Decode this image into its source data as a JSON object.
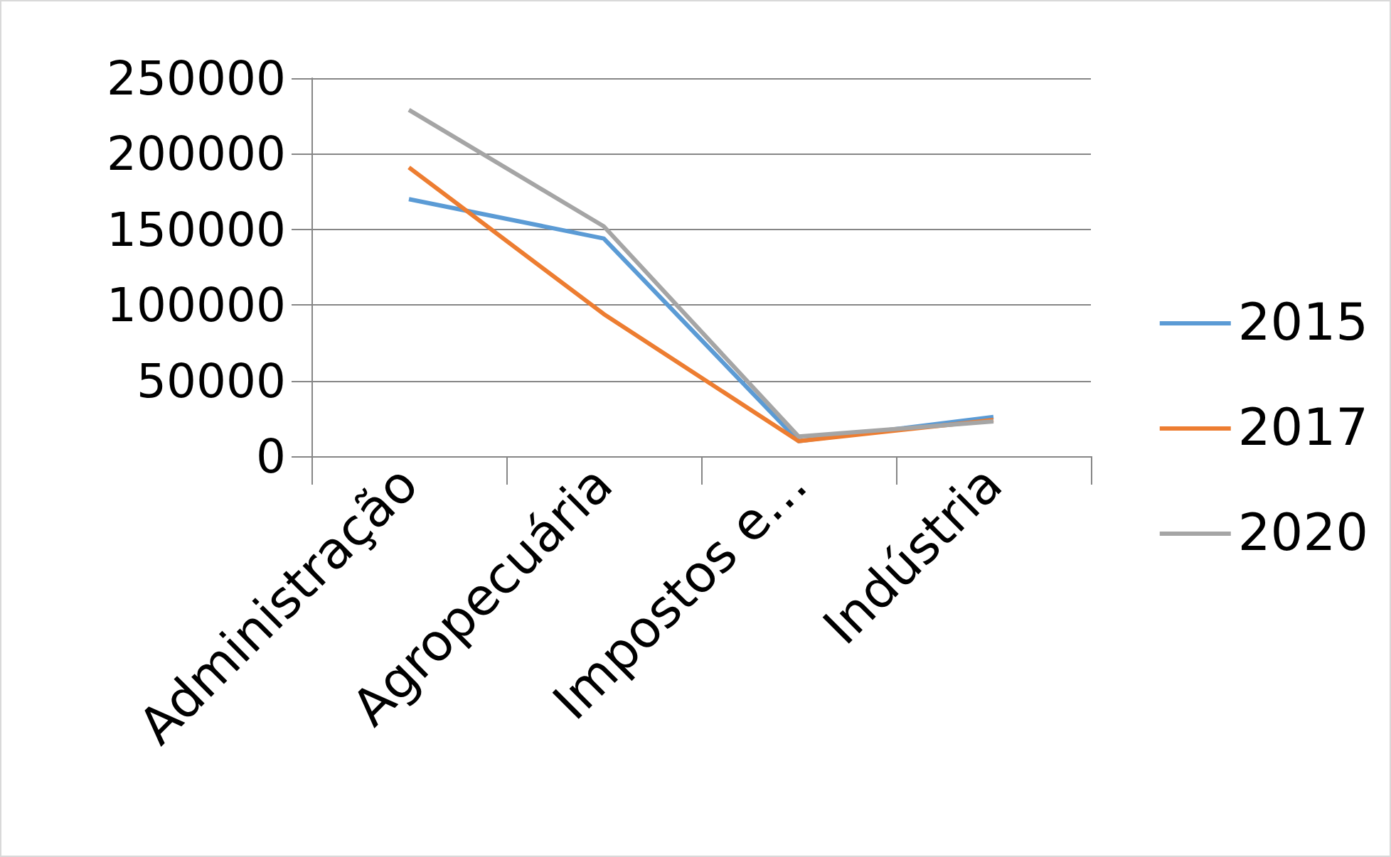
{
  "chart_data": {
    "type": "line",
    "categories": [
      "Administração",
      "Agropecuária",
      "Impostos e…",
      "Indústria"
    ],
    "series": [
      {
        "name": "2015",
        "color": "#5b9bd5",
        "values": [
          170000,
          144000,
          10000,
          26000
        ]
      },
      {
        "name": "2017",
        "color": "#ed7d31",
        "values": [
          191000,
          94000,
          10000,
          24000
        ]
      },
      {
        "name": "2020",
        "color": "#a5a5a5",
        "values": [
          229000,
          152000,
          13000,
          23000
        ]
      }
    ],
    "ylim": [
      0,
      250000
    ],
    "yticks": [
      0,
      50000,
      100000,
      150000,
      200000,
      250000
    ],
    "grid": "y",
    "legend": "right",
    "marker": "none",
    "line_style": "solid"
  }
}
